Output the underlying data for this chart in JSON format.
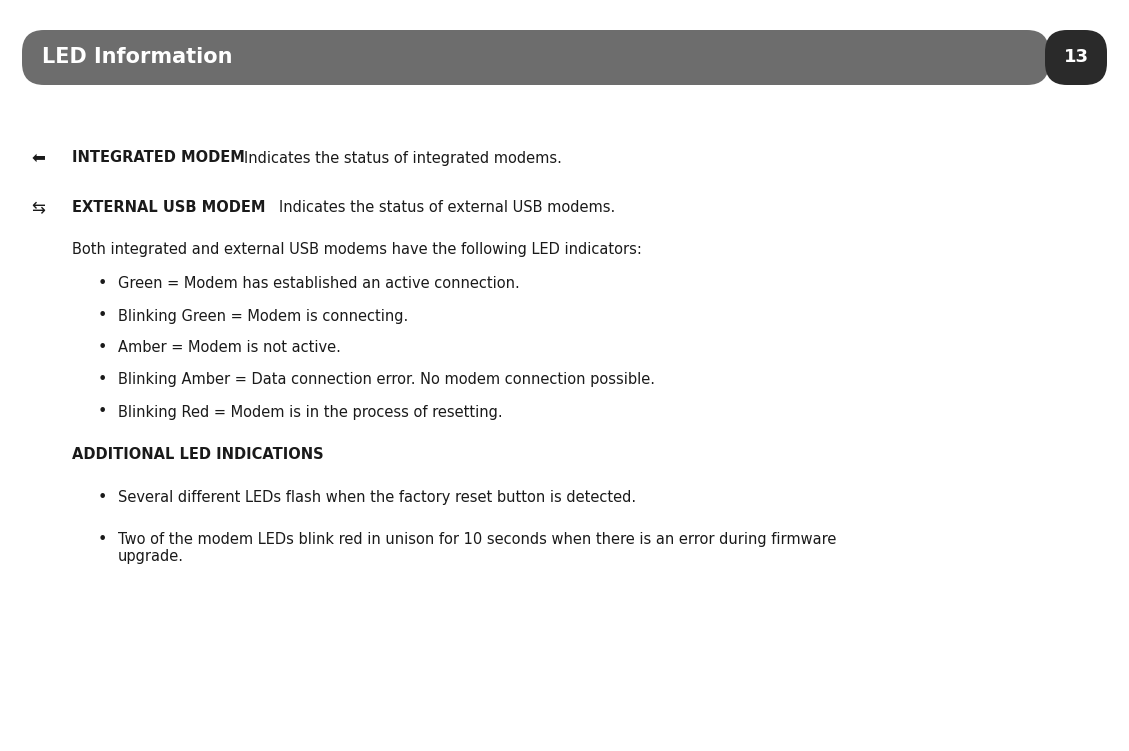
{
  "page_bg": "#ffffff",
  "header_bg": "#6d6d6d",
  "header_text": "LED Information",
  "header_text_color": "#ffffff",
  "header_fontsize": 15,
  "page_number": "13",
  "page_num_bg": "#2a2a2a",
  "page_num_color": "#ffffff",
  "page_num_fontsize": 13,
  "body_text_color": "#1a1a1a",
  "body_fontsize": 10.5,
  "bold_label_fontsize": 10.5,
  "section_title_fontsize": 10.5,
  "integrated_label": "INTEGRATED MODEM",
  "integrated_desc": "Indicates the status of integrated modems.",
  "external_label": "EXTERNAL USB MODEM",
  "external_desc": "Indicates the status of external USB modems.",
  "both_text": "Both integrated and external USB modems have the following LED indicators:",
  "bullet_items": [
    "Green = Modem has established an active connection.",
    "Blinking Green = Modem is connecting.",
    "Amber = Modem is not active.",
    "Blinking Amber = Data connection error. No modem connection possible.",
    "Blinking Red = Modem is in the process of resetting."
  ],
  "additional_title": "ADDITIONAL LED INDICATIONS",
  "additional_bullets": [
    "Several different LEDs flash when the factory reset button is detected.",
    "Two of the modem LEDs blink red in unison for 10 seconds when there is an error during firmware\nupgrade."
  ],
  "figw": 11.29,
  "figh": 7.51,
  "dpi": 100
}
